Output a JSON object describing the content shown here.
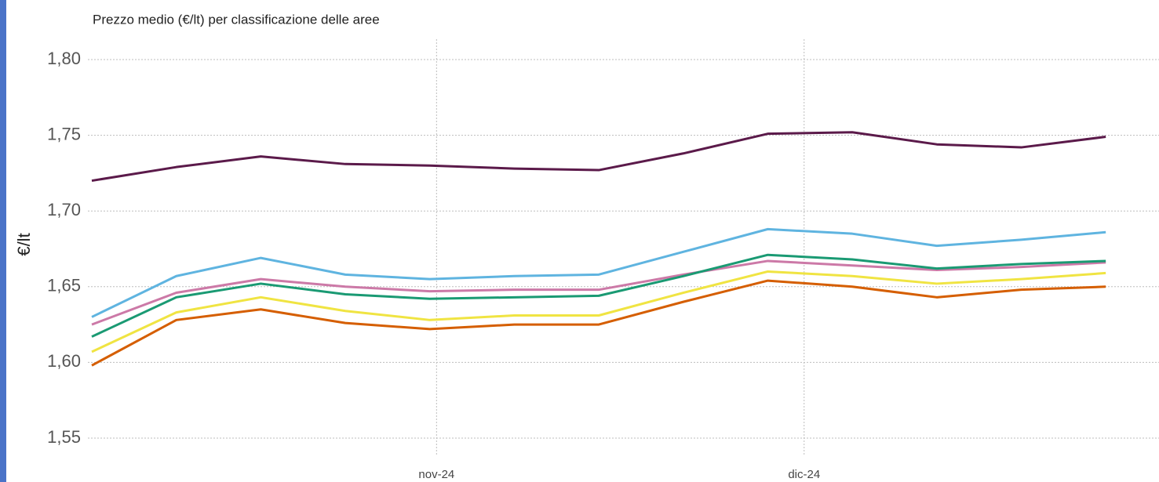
{
  "chart_data": {
    "type": "line",
    "title": "Prezzo medio (€/lt) per classificazione delle aree",
    "ylabel": "€/lt",
    "x": [
      0,
      1,
      2,
      3,
      4,
      5,
      6,
      7,
      8,
      9,
      10,
      11,
      12
    ],
    "xlim": [
      0,
      12.63
    ],
    "xticks": [
      {
        "value": 4.08,
        "label": "nov-24"
      },
      {
        "value": 8.43,
        "label": "dic-24"
      }
    ],
    "ylim": [
      1.55,
      1.8
    ],
    "yticks": [
      {
        "value": 1.55,
        "label": "1,55"
      },
      {
        "value": 1.6,
        "label": "1,60"
      },
      {
        "value": 1.65,
        "label": "1,65"
      },
      {
        "value": 1.7,
        "label": "1,70"
      },
      {
        "value": 1.75,
        "label": "1,75"
      },
      {
        "value": 1.8,
        "label": "1,80"
      }
    ],
    "grid": true,
    "series": [
      {
        "color": "#5b1a4a",
        "values": [
          1.72,
          1.729,
          1.736,
          1.731,
          1.73,
          1.728,
          1.727,
          1.738,
          1.751,
          1.752,
          1.744,
          1.742,
          1.749
        ]
      },
      {
        "color": "#5fb4e0",
        "values": [
          1.63,
          1.657,
          1.669,
          1.658,
          1.655,
          1.657,
          1.658,
          1.673,
          1.688,
          1.685,
          1.677,
          1.681,
          1.686
        ]
      },
      {
        "color": "#1a9a73",
        "values": [
          1.617,
          1.643,
          1.652,
          1.645,
          1.642,
          1.643,
          1.644,
          1.657,
          1.671,
          1.668,
          1.662,
          1.665,
          1.667
        ]
      },
      {
        "color": "#cc79a7",
        "values": [
          1.625,
          1.646,
          1.655,
          1.65,
          1.647,
          1.648,
          1.648,
          1.658,
          1.667,
          1.664,
          1.661,
          1.663,
          1.666
        ]
      },
      {
        "color": "#f0e442",
        "values": [
          1.607,
          1.633,
          1.643,
          1.634,
          1.628,
          1.631,
          1.631,
          1.646,
          1.66,
          1.657,
          1.652,
          1.655,
          1.659
        ]
      },
      {
        "color": "#d55e00",
        "values": [
          1.598,
          1.628,
          1.635,
          1.626,
          1.622,
          1.625,
          1.625,
          1.64,
          1.654,
          1.65,
          1.643,
          1.648,
          1.65
        ]
      }
    ]
  }
}
